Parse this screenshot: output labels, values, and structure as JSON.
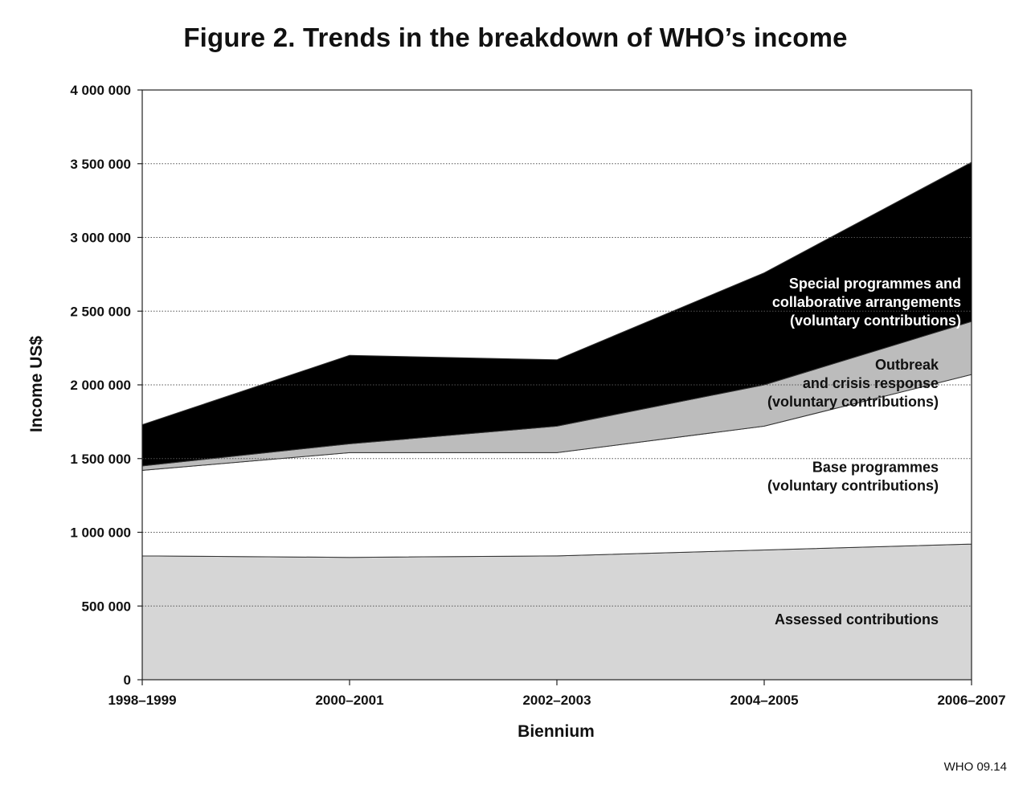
{
  "chart_data": {
    "type": "area",
    "stacked": true,
    "title": "Figure 2. Trends in the breakdown of WHO’s income",
    "xlabel": "Biennium",
    "ylabel": "Income US$",
    "categories": [
      "1998–1999",
      "2000–2001",
      "2002–2003",
      "2004–2005",
      "2006–2007"
    ],
    "ylim": [
      0,
      4000000
    ],
    "yticks": [
      0,
      500000,
      1000000,
      1500000,
      2000000,
      2500000,
      3000000,
      3500000,
      4000000
    ],
    "ytick_labels": [
      "0",
      "500 000",
      "1 000 000",
      "1 500 000",
      "2 000 000",
      "2 500 000",
      "3 000 000",
      "3 500 000",
      "4 000 000"
    ],
    "grid": "horizontal dotted",
    "series": [
      {
        "name": "Assessed contributions",
        "label_lines": [
          "Assessed contributions"
        ],
        "values": [
          840000,
          830000,
          840000,
          880000,
          920000
        ],
        "color": "#d6d6d6"
      },
      {
        "name": "Base programmes (voluntary contributions)",
        "label_lines": [
          "Base programmes",
          "(voluntary contributions)"
        ],
        "values": [
          580000,
          710000,
          700000,
          840000,
          1150000
        ],
        "color": "#ffffff"
      },
      {
        "name": "Outbreak and crisis response (voluntary contributions)",
        "label_lines": [
          "Outbreak",
          "and crisis response",
          "(voluntary contributions)"
        ],
        "values": [
          30000,
          60000,
          180000,
          280000,
          360000
        ],
        "color": "#bcbcbc"
      },
      {
        "name": "Special programmes and collaborative arrangements (voluntary contributions)",
        "label_lines": [
          "Special programmes and",
          "collaborative arrangements",
          "(voluntary contributions)"
        ],
        "values": [
          280000,
          600000,
          450000,
          760000,
          1080000
        ],
        "color": "#000000"
      }
    ]
  },
  "footnote": "WHO 09.14"
}
